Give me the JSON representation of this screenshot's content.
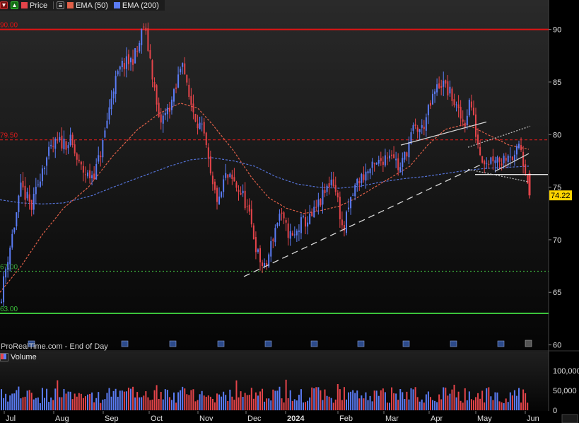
{
  "legend": {
    "price_label": "Price",
    "ema50_label": "EMA (50)",
    "ema200_label": "EMA (200)"
  },
  "volume_label": "Volume",
  "watermark": "ProRealTime.com - End of Day",
  "colors": {
    "up": "#5b7cf5",
    "down": "#e5444a",
    "ema50": "#e06048",
    "ema200": "#5573d8",
    "resistance": "#e01414",
    "level_79_5": "#d41c1c",
    "support_67": "#3aa63a",
    "support_63": "#3cc43c",
    "price_tag": "#ffd400"
  },
  "chart_data": {
    "type": "candlestick",
    "last_price": "74.22",
    "ylim": [
      59.5,
      92.8
    ],
    "y_ticks": [
      60,
      65,
      70,
      75,
      80,
      85,
      90
    ],
    "x_labels": [
      "Jul",
      "Aug",
      "Sep",
      "Oct",
      "Nov",
      "Dec",
      "2024",
      "Feb",
      "Mar",
      "Apr",
      "May",
      "Jun"
    ],
    "volume_ticks": [
      "100,000",
      "50,000",
      "0"
    ],
    "volume_max": 120000,
    "levels": [
      {
        "label": "90.00",
        "value": 90.0,
        "style": "solid",
        "color": "#e01414"
      },
      {
        "label": "79.50",
        "value": 79.5,
        "style": "dashed",
        "color": "#d41c1c"
      },
      {
        "label": "67.00",
        "value": 67.0,
        "style": "dotted",
        "color": "#3aa63a"
      },
      {
        "label": "63.00",
        "value": 63.0,
        "style": "solid",
        "color": "#3cc43c"
      }
    ],
    "close_path": [
      [
        0,
        64.0
      ],
      [
        10,
        68.0
      ],
      [
        22,
        72.0
      ],
      [
        30,
        75.0
      ],
      [
        45,
        73.0
      ],
      [
        60,
        77.0
      ],
      [
        72,
        78.5
      ],
      [
        80,
        79.2
      ],
      [
        100,
        79.3
      ],
      [
        112,
        77.0
      ],
      [
        125,
        76.0
      ],
      [
        135,
        76.5
      ],
      [
        145,
        79.0
      ],
      [
        160,
        84.5
      ],
      [
        172,
        86.5
      ],
      [
        185,
        87.0
      ],
      [
        195,
        88.0
      ],
      [
        203,
        90.5
      ],
      [
        213,
        87.0
      ],
      [
        225,
        81.0
      ],
      [
        235,
        82.0
      ],
      [
        248,
        84.0
      ],
      [
        258,
        87.5
      ],
      [
        265,
        84.0
      ],
      [
        275,
        82.0
      ],
      [
        288,
        80.0
      ],
      [
        300,
        75.0
      ],
      [
        310,
        73.5
      ],
      [
        318,
        76.0
      ],
      [
        330,
        75.5
      ],
      [
        345,
        74.0
      ],
      [
        355,
        71.5
      ],
      [
        365,
        68.5
      ],
      [
        375,
        67.0
      ],
      [
        385,
        70.0
      ],
      [
        395,
        72.5
      ],
      [
        405,
        71.0
      ],
      [
        415,
        70.0
      ],
      [
        425,
        71.5
      ],
      [
        440,
        72.0
      ],
      [
        452,
        73.5
      ],
      [
        460,
        74.5
      ],
      [
        470,
        76.0
      ],
      [
        480,
        73.0
      ],
      [
        485,
        70.5
      ],
      [
        495,
        73.5
      ],
      [
        505,
        75.5
      ],
      [
        520,
        76.5
      ],
      [
        532,
        77.0
      ],
      [
        545,
        78.0
      ],
      [
        555,
        78.5
      ],
      [
        565,
        76.5
      ],
      [
        575,
        78.5
      ],
      [
        585,
        80.5
      ],
      [
        597,
        80.5
      ],
      [
        605,
        82.0
      ],
      [
        615,
        84.0
      ],
      [
        623,
        85.0
      ],
      [
        630,
        84.5
      ],
      [
        640,
        83.5
      ],
      [
        648,
        82.0
      ],
      [
        657,
        81.0
      ],
      [
        665,
        83.5
      ],
      [
        672,
        80.5
      ],
      [
        680,
        78.0
      ],
      [
        690,
        77.5
      ],
      [
        700,
        78.0
      ],
      [
        710,
        77.5
      ],
      [
        720,
        78.5
      ],
      [
        728,
        77.5
      ],
      [
        735,
        79.5
      ],
      [
        740,
        77.5
      ],
      [
        745,
        76.5
      ],
      [
        749,
        74.22
      ]
    ],
    "ema50_path": [
      [
        0,
        65.0
      ],
      [
        30,
        67.5
      ],
      [
        60,
        70.5
      ],
      [
        90,
        73.0
      ],
      [
        125,
        75.0
      ],
      [
        160,
        78.0
      ],
      [
        195,
        80.5
      ],
      [
        225,
        82.0
      ],
      [
        255,
        83.0
      ],
      [
        280,
        82.5
      ],
      [
        300,
        81.0
      ],
      [
        330,
        78.5
      ],
      [
        355,
        76.0
      ],
      [
        380,
        74.0
      ],
      [
        405,
        73.0
      ],
      [
        430,
        72.5
      ],
      [
        455,
        72.8
      ],
      [
        480,
        73.2
      ],
      [
        505,
        74.0
      ],
      [
        530,
        75.0
      ],
      [
        555,
        76.0
      ],
      [
        580,
        77.0
      ],
      [
        605,
        79.0
      ],
      [
        630,
        80.5
      ],
      [
        660,
        81.0
      ],
      [
        690,
        80.0
      ],
      [
        720,
        79.0
      ],
      [
        748,
        78.6
      ]
    ],
    "ema200_path": [
      [
        0,
        73.8
      ],
      [
        30,
        73.5
      ],
      [
        60,
        73.4
      ],
      [
        90,
        73.5
      ],
      [
        130,
        74.2
      ],
      [
        160,
        75.0
      ],
      [
        200,
        76.0
      ],
      [
        240,
        77.0
      ],
      [
        270,
        77.6
      ],
      [
        300,
        77.8
      ],
      [
        330,
        77.5
      ],
      [
        360,
        77.0
      ],
      [
        390,
        76.0
      ],
      [
        420,
        75.3
      ],
      [
        450,
        75.0
      ],
      [
        480,
        74.9
      ],
      [
        510,
        75.1
      ],
      [
        540,
        75.5
      ],
      [
        570,
        75.8
      ],
      [
        600,
        76.0
      ],
      [
        630,
        76.3
      ],
      [
        660,
        76.6
      ],
      [
        690,
        76.8
      ],
      [
        720,
        76.9
      ],
      [
        748,
        77.0
      ]
    ],
    "trendlines": [
      {
        "from": [
          345,
          66.5
        ],
        "to": [
          682,
          77.2
        ],
        "style": "dashed",
        "color": "#d8d8d8"
      },
      {
        "from": [
          567,
          79.0
        ],
        "to": [
          688,
          81.2
        ],
        "style": "solid",
        "color": "#d8d8d8"
      },
      {
        "from": [
          672,
          76.2
        ],
        "to": [
          775,
          76.2
        ],
        "style": "solid",
        "color": "#ffffff"
      },
      {
        "from": [
          662,
          78.8
        ],
        "to": [
          750,
          80.8
        ],
        "style": "dotted",
        "color": "#bbbbbb"
      },
      {
        "from": [
          662,
          76.7
        ],
        "to": [
          748,
          75.5
        ],
        "style": "dotted",
        "color": "#bbbbbb"
      },
      {
        "from": [
          700,
          76.5
        ],
        "to": [
          748,
          78.2
        ],
        "style": "solid",
        "color": "#cccccc"
      }
    ]
  }
}
